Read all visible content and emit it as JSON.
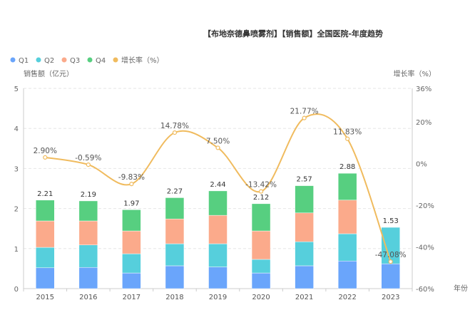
{
  "chart_data": {
    "type": "bar",
    "title": "【布地奈德鼻喷雾剂】【销售额】全国医院-年度趋势",
    "xlabel": "年份",
    "ylabel": "销售额（亿元）",
    "y2label": "增长率（%）",
    "categories": [
      "2015",
      "2016",
      "2017",
      "2018",
      "2019",
      "2020",
      "2021",
      "2022",
      "2023"
    ],
    "ylim": [
      0,
      5
    ],
    "yticks": [
      "0",
      "1",
      "2",
      "3",
      "4",
      "5"
    ],
    "y2lim": [
      -60,
      36
    ],
    "y2ticks": [
      "-60%",
      "-40%",
      "-20%",
      "0%",
      "20%",
      "36%"
    ],
    "grid": true,
    "legend_position": "top-left",
    "series": [
      {
        "name": "Q1",
        "color": "#6aa5fb",
        "values": [
          0.52,
          0.53,
          0.39,
          0.57,
          0.54,
          0.39,
          0.57,
          0.69,
          0.62
        ]
      },
      {
        "name": "Q2",
        "color": "#56cfdc",
        "values": [
          0.51,
          0.56,
          0.48,
          0.55,
          0.58,
          0.34,
          0.6,
          0.68,
          0.91
        ]
      },
      {
        "name": "Q3",
        "color": "#fbaa8b",
        "values": [
          0.66,
          0.6,
          0.57,
          0.62,
          0.71,
          0.71,
          0.72,
          0.84,
          0
        ]
      },
      {
        "name": "Q4",
        "color": "#57cf80",
        "values": [
          0.52,
          0.5,
          0.53,
          0.53,
          0.61,
          0.68,
          0.68,
          0.67,
          0
        ]
      }
    ],
    "totals": [
      "2.21",
      "2.19",
      "1.97",
      "2.27",
      "2.44",
      "2.12",
      "2.57",
      "2.88",
      "1.53"
    ],
    "growth": {
      "name": "增长率（%）",
      "color": "#f0bb5e",
      "values": [
        2.9,
        -0.59,
        -9.83,
        14.78,
        7.5,
        -13.42,
        21.77,
        11.83,
        -47.08
      ],
      "labels": [
        "2.90%",
        "-0.59%",
        "-9.83%",
        "14.78%",
        "7.50%",
        "-13.42%",
        "21.77%",
        "11.83%",
        "-47.08%"
      ]
    }
  }
}
